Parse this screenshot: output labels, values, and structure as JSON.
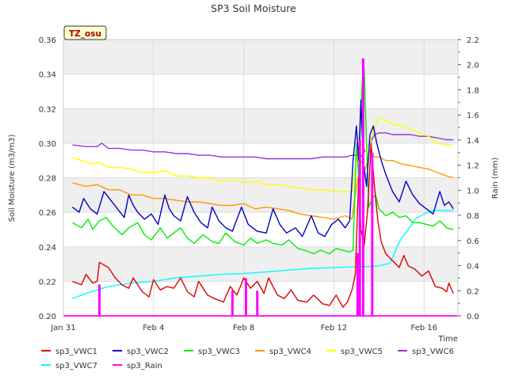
{
  "chart_data": {
    "type": "line",
    "title": "SP3 Soil Moisture",
    "xlabel": "Time",
    "ylabel": "Soil Moisture (m3/m3)",
    "y2label": "Rain (mm)",
    "annotation": "TZ_osu",
    "xlim": [
      0,
      17.5
    ],
    "ylim": [
      0.2,
      0.36
    ],
    "y2lim": [
      0.0,
      2.2
    ],
    "x_ticks": [
      {
        "x": 0,
        "label": "Jan 31"
      },
      {
        "x": 4,
        "label": "Feb 4"
      },
      {
        "x": 8,
        "label": "Feb 8"
      },
      {
        "x": 12,
        "label": "Feb 12"
      },
      {
        "x": 16,
        "label": "Feb 16"
      }
    ],
    "y_ticks": [
      "0.20",
      "0.22",
      "0.24",
      "0.26",
      "0.28",
      "0.30",
      "0.32",
      "0.34",
      "0.36"
    ],
    "y2_ticks": [
      "0.0",
      "0.2",
      "0.4",
      "0.6",
      "0.8",
      "1.0",
      "1.2",
      "1.4",
      "1.6",
      "1.8",
      "2.0",
      "2.2"
    ],
    "grid": true,
    "legend_position": "bottom",
    "series": [
      {
        "name": "sp3_VWC1",
        "color": "#dd0000",
        "axis": "left",
        "x": [
          0.4,
          0.8,
          1.0,
          1.3,
          1.5,
          1.6,
          2.0,
          2.3,
          2.6,
          2.9,
          3.1,
          3.5,
          3.8,
          4.0,
          4.3,
          4.6,
          4.9,
          5.2,
          5.5,
          5.8,
          6.0,
          6.4,
          6.7,
          7.1,
          7.4,
          7.7,
          8.0,
          8.3,
          8.6,
          8.9,
          9.1,
          9.5,
          9.8,
          10.1,
          10.4,
          10.8,
          11.1,
          11.5,
          11.8,
          12.1,
          12.4,
          12.6,
          12.8,
          12.95,
          13.1,
          13.2,
          13.35,
          13.5,
          13.65,
          13.8,
          13.95,
          14.1,
          14.3,
          14.6,
          14.9,
          15.1,
          15.3,
          15.6,
          15.9,
          16.2,
          16.5,
          16.8,
          17.0,
          17.1,
          17.3
        ],
        "y": [
          0.22,
          0.218,
          0.224,
          0.219,
          0.22,
          0.231,
          0.228,
          0.222,
          0.218,
          0.216,
          0.222,
          0.214,
          0.211,
          0.221,
          0.215,
          0.217,
          0.216,
          0.222,
          0.214,
          0.211,
          0.22,
          0.212,
          0.21,
          0.208,
          0.217,
          0.212,
          0.222,
          0.216,
          0.22,
          0.213,
          0.222,
          0.212,
          0.21,
          0.215,
          0.209,
          0.208,
          0.212,
          0.207,
          0.206,
          0.212,
          0.205,
          0.208,
          0.215,
          0.224,
          0.28,
          0.25,
          0.241,
          0.262,
          0.3,
          0.275,
          0.255,
          0.243,
          0.236,
          0.232,
          0.228,
          0.235,
          0.229,
          0.227,
          0.223,
          0.226,
          0.217,
          0.216,
          0.214,
          0.219,
          0.213
        ]
      },
      {
        "name": "sp3_VWC2",
        "color": "#0000cc",
        "axis": "left",
        "x": [
          0.4,
          0.7,
          0.9,
          1.2,
          1.5,
          1.8,
          2.1,
          2.4,
          2.7,
          2.9,
          3.1,
          3.3,
          3.6,
          3.9,
          4.2,
          4.5,
          4.7,
          4.9,
          5.2,
          5.5,
          5.8,
          6.1,
          6.4,
          6.6,
          6.9,
          7.2,
          7.5,
          7.9,
          8.2,
          8.6,
          9.0,
          9.3,
          9.6,
          9.9,
          10.3,
          10.6,
          11.0,
          11.3,
          11.6,
          11.9,
          12.2,
          12.5,
          12.7,
          12.85,
          13.0,
          13.1,
          13.2,
          13.3,
          13.45,
          13.6,
          13.75,
          13.9,
          14.1,
          14.3,
          14.6,
          14.9,
          15.2,
          15.5,
          15.8,
          16.1,
          16.4,
          16.7,
          16.9,
          17.1,
          17.3
        ],
        "y": [
          0.263,
          0.26,
          0.268,
          0.262,
          0.259,
          0.272,
          0.267,
          0.262,
          0.257,
          0.27,
          0.264,
          0.26,
          0.256,
          0.259,
          0.253,
          0.27,
          0.262,
          0.258,
          0.255,
          0.269,
          0.26,
          0.254,
          0.251,
          0.263,
          0.255,
          0.251,
          0.249,
          0.263,
          0.253,
          0.249,
          0.248,
          0.262,
          0.253,
          0.248,
          0.251,
          0.246,
          0.258,
          0.248,
          0.246,
          0.253,
          0.256,
          0.251,
          0.255,
          0.29,
          0.31,
          0.29,
          0.325,
          0.29,
          0.275,
          0.305,
          0.31,
          0.3,
          0.29,
          0.282,
          0.272,
          0.266,
          0.278,
          0.27,
          0.265,
          0.262,
          0.259,
          0.272,
          0.264,
          0.266,
          0.262
        ]
      },
      {
        "name": "sp3_VWC3",
        "color": "#00ee00",
        "axis": "left",
        "x": [
          0.4,
          0.8,
          1.1,
          1.3,
          1.6,
          1.9,
          2.2,
          2.6,
          2.9,
          3.3,
          3.6,
          3.9,
          4.3,
          4.6,
          4.9,
          5.2,
          5.5,
          5.8,
          6.2,
          6.6,
          6.9,
          7.2,
          7.6,
          8.0,
          8.3,
          8.6,
          9.0,
          9.3,
          9.7,
          10.0,
          10.4,
          10.7,
          11.1,
          11.4,
          11.8,
          12.1,
          12.4,
          12.7,
          12.85,
          13.0,
          13.1,
          13.2,
          13.3,
          13.35,
          13.45,
          13.55,
          13.7,
          13.85,
          14.0,
          14.3,
          14.6,
          14.9,
          15.2,
          15.5,
          15.8,
          16.1,
          16.4,
          16.7,
          17.0,
          17.3
        ],
        "y": [
          0.254,
          0.251,
          0.256,
          0.25,
          0.255,
          0.257,
          0.252,
          0.247,
          0.251,
          0.254,
          0.247,
          0.244,
          0.251,
          0.245,
          0.248,
          0.251,
          0.245,
          0.242,
          0.247,
          0.243,
          0.242,
          0.248,
          0.243,
          0.241,
          0.245,
          0.242,
          0.244,
          0.242,
          0.241,
          0.244,
          0.239,
          0.238,
          0.236,
          0.238,
          0.236,
          0.239,
          0.238,
          0.237,
          0.238,
          0.3,
          0.28,
          0.32,
          0.347,
          0.342,
          0.3,
          0.263,
          0.268,
          0.27,
          0.262,
          0.258,
          0.26,
          0.257,
          0.258,
          0.254,
          0.254,
          0.253,
          0.252,
          0.255,
          0.251,
          0.25
        ]
      },
      {
        "name": "sp3_VWC4",
        "color": "#ff9900",
        "axis": "left",
        "x": [
          0.4,
          1.0,
          1.5,
          2.0,
          2.5,
          3.0,
          3.5,
          4.0,
          4.5,
          5.0,
          5.5,
          6.0,
          6.5,
          7.0,
          7.5,
          8.0,
          8.5,
          9.0,
          9.5,
          10.0,
          10.5,
          11.0,
          11.5,
          12.0,
          12.5,
          12.8,
          13.0,
          13.2,
          13.4,
          13.6,
          13.8,
          14.0,
          14.3,
          14.6,
          15.0,
          15.4,
          15.8,
          16.2,
          16.6,
          17.0,
          17.3
        ],
        "y": [
          0.277,
          0.275,
          0.276,
          0.273,
          0.273,
          0.27,
          0.27,
          0.268,
          0.268,
          0.267,
          0.266,
          0.266,
          0.265,
          0.264,
          0.264,
          0.265,
          0.262,
          0.263,
          0.262,
          0.261,
          0.259,
          0.258,
          0.257,
          0.256,
          0.258,
          0.256,
          0.275,
          0.29,
          0.285,
          0.296,
          0.292,
          0.292,
          0.29,
          0.29,
          0.288,
          0.287,
          0.286,
          0.285,
          0.283,
          0.281,
          0.28
        ]
      },
      {
        "name": "sp3_VWC5",
        "color": "#ffff00",
        "axis": "left",
        "x": [
          0.4,
          0.8,
          1.2,
          1.6,
          2.0,
          2.5,
          3.0,
          3.5,
          4.0,
          4.5,
          5.0,
          5.5,
          6.0,
          6.5,
          7.0,
          7.5,
          8.0,
          8.5,
          9.0,
          9.5,
          10.0,
          10.5,
          11.0,
          11.5,
          12.0,
          12.5,
          12.8,
          13.0,
          13.2,
          13.4,
          13.6,
          13.8,
          14.0,
          14.3,
          14.6,
          15.0,
          15.4,
          15.8,
          16.2,
          16.6,
          17.0,
          17.3
        ],
        "y": [
          0.292,
          0.29,
          0.288,
          0.289,
          0.286,
          0.286,
          0.285,
          0.283,
          0.283,
          0.284,
          0.281,
          0.281,
          0.28,
          0.28,
          0.278,
          0.279,
          0.277,
          0.278,
          0.276,
          0.276,
          0.275,
          0.274,
          0.273,
          0.273,
          0.272,
          0.272,
          0.272,
          0.29,
          0.3,
          0.296,
          0.3,
          0.31,
          0.315,
          0.313,
          0.311,
          0.31,
          0.308,
          0.306,
          0.304,
          0.3,
          0.299,
          0.299
        ]
      },
      {
        "name": "sp3_VWC6",
        "color": "#9933dd",
        "axis": "left",
        "x": [
          0.4,
          1.0,
          1.5,
          1.7,
          2.0,
          2.5,
          3.0,
          3.5,
          4.0,
          4.5,
          5.0,
          5.5,
          6.0,
          6.5,
          7.0,
          7.5,
          8.0,
          8.5,
          9.0,
          9.5,
          10.0,
          10.5,
          11.0,
          11.5,
          12.0,
          12.5,
          12.8,
          13.0,
          13.2,
          13.4,
          13.6,
          13.8,
          14.0,
          14.3,
          14.6,
          15.0,
          15.4,
          15.8,
          16.2,
          16.6,
          17.0,
          17.3
        ],
        "y": [
          0.299,
          0.298,
          0.298,
          0.3,
          0.297,
          0.297,
          0.296,
          0.296,
          0.295,
          0.295,
          0.294,
          0.294,
          0.293,
          0.293,
          0.292,
          0.292,
          0.292,
          0.292,
          0.291,
          0.291,
          0.291,
          0.291,
          0.291,
          0.292,
          0.292,
          0.292,
          0.293,
          0.293,
          0.292,
          0.296,
          0.3,
          0.305,
          0.306,
          0.306,
          0.305,
          0.305,
          0.305,
          0.304,
          0.304,
          0.303,
          0.302,
          0.302
        ]
      },
      {
        "name": "sp3_VWC7",
        "color": "#00ffff",
        "axis": "left",
        "x": [
          0.4,
          1.0,
          1.5,
          2.0,
          3.0,
          4.0,
          5.0,
          6.0,
          7.0,
          8.0,
          9.0,
          10.0,
          11.0,
          12.0,
          13.0,
          13.5,
          14.0,
          14.5,
          14.8,
          15.0,
          15.3,
          15.6,
          16.0,
          16.4,
          16.8,
          17.3
        ],
        "y": [
          0.21,
          0.213,
          0.215,
          0.217,
          0.219,
          0.22,
          0.222,
          0.223,
          0.224,
          0.2245,
          0.2255,
          0.2265,
          0.2275,
          0.228,
          0.2285,
          0.2285,
          0.229,
          0.2305,
          0.24,
          0.245,
          0.25,
          0.256,
          0.259,
          0.261,
          0.261,
          0.261
        ]
      },
      {
        "name": "sp3_Rain",
        "color": "#ff00ff",
        "axis": "right",
        "kind": "spike",
        "baseline": 0.0,
        "x": [
          1.6,
          7.5,
          8.1,
          8.6,
          13.05,
          13.15,
          13.3,
          13.7
        ],
        "y": [
          0.25,
          0.2,
          0.3,
          0.2,
          0.5,
          1.4,
          2.05,
          1.3
        ]
      }
    ]
  }
}
